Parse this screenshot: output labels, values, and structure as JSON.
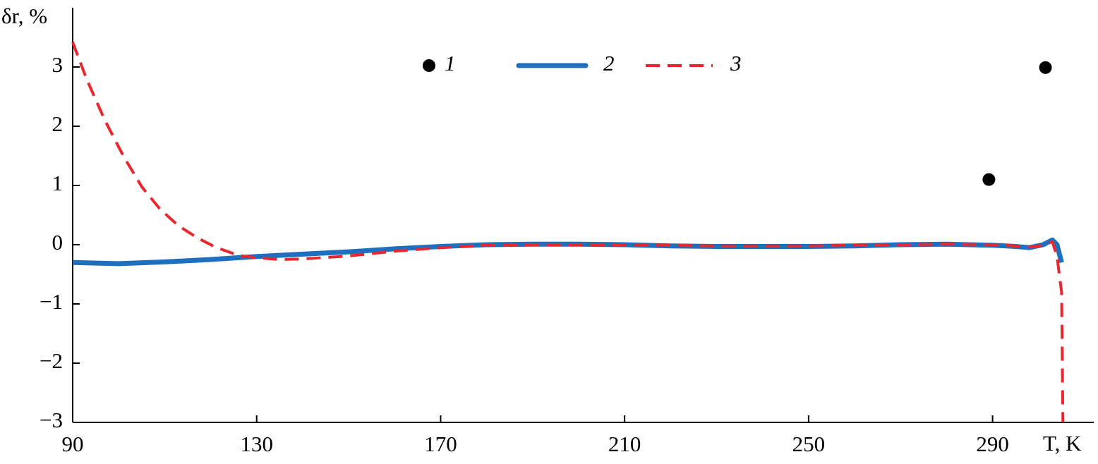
{
  "chart_data": {
    "type": "line",
    "y_label": "δr, %",
    "x_label": "T, K",
    "xlim": [
      90,
      312
    ],
    "ylim": [
      -3,
      4
    ],
    "xticks": [
      90,
      130,
      170,
      210,
      250,
      290
    ],
    "yticks": [
      {
        "value": -3,
        "label": "−3"
      },
      {
        "value": -2,
        "label": "−2"
      },
      {
        "value": -1,
        "label": "−1"
      },
      0,
      1,
      2,
      3
    ],
    "grid": false,
    "series": [
      {
        "name": "1",
        "kind": "scatter",
        "color": "#000000",
        "x": [
          289.2,
          301.5
        ],
        "values": [
          1.1,
          2.99
        ]
      },
      {
        "name": "2",
        "kind": "line",
        "dashed": false,
        "color": "#1f6fbf",
        "x": [
          90,
          100,
          110,
          120,
          130,
          140,
          150,
          160,
          170,
          180,
          190,
          200,
          210,
          220,
          230,
          240,
          250,
          260,
          270,
          280,
          290,
          295,
          298,
          301,
          303,
          304,
          305
        ],
        "values": [
          -0.3,
          -0.32,
          -0.29,
          -0.25,
          -0.2,
          -0.16,
          -0.12,
          -0.07,
          -0.03,
          0.0,
          0.01,
          0.01,
          0.0,
          -0.02,
          -0.03,
          -0.03,
          -0.03,
          -0.02,
          0.0,
          0.01,
          -0.01,
          -0.03,
          -0.05,
          0.0,
          0.08,
          0.0,
          -0.3
        ]
      },
      {
        "name": "3",
        "kind": "line",
        "dashed": true,
        "color": "#e8282e",
        "x": [
          90,
          93,
          97,
          101,
          105,
          109,
          113,
          117,
          121,
          126,
          130,
          135,
          140,
          150,
          160,
          170,
          180,
          190,
          200,
          210,
          220,
          230,
          240,
          250,
          260,
          270,
          280,
          290,
          295,
          298,
          301,
          303,
          304,
          305,
          305.3
        ],
        "values": [
          3.42,
          2.8,
          2.1,
          1.5,
          0.98,
          0.6,
          0.32,
          0.12,
          -0.04,
          -0.18,
          -0.22,
          -0.25,
          -0.24,
          -0.19,
          -0.11,
          -0.05,
          -0.01,
          0.0,
          0.0,
          0.0,
          -0.01,
          -0.02,
          -0.02,
          -0.02,
          -0.01,
          0.0,
          0.01,
          0.0,
          -0.02,
          -0.04,
          -0.01,
          0.05,
          -0.2,
          -0.8,
          -3.0
        ]
      }
    ]
  }
}
